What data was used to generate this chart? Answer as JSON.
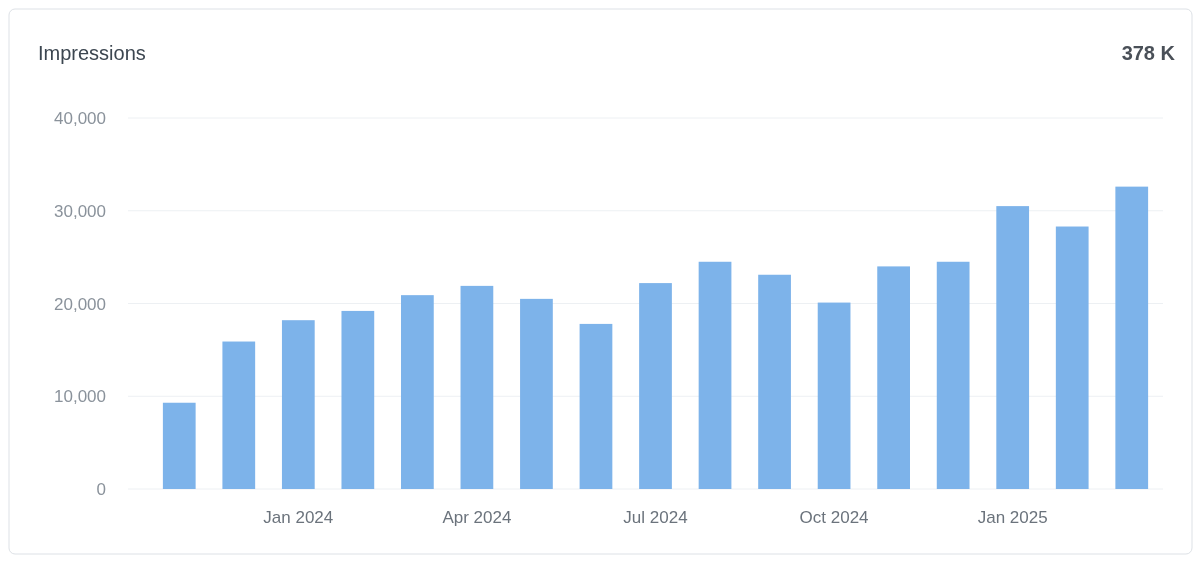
{
  "chart_data": {
    "type": "bar",
    "title": "Impressions",
    "annotations": [
      "378 K"
    ],
    "categories": [
      null,
      null,
      "Jan 2024",
      null,
      null,
      "Apr 2024",
      null,
      null,
      "Jul 2024",
      null,
      null,
      "Oct 2024",
      null,
      null,
      "Jan 2025",
      null,
      null
    ],
    "series": [
      {
        "color": "#7db3ea",
        "values": [
          9300,
          15900,
          18200,
          19200,
          20900,
          21900,
          20500,
          17800,
          22200,
          24500,
          23100,
          20100,
          24000,
          24500,
          30500,
          28300,
          32600
        ]
      }
    ],
    "ylim": [
      0,
      40000
    ],
    "yticks": [
      {
        "value": 0,
        "label": "0"
      },
      {
        "value": 10000,
        "label": "10,000"
      },
      {
        "value": 20000,
        "label": "20,000"
      },
      {
        "value": 30000,
        "label": "30,000"
      },
      {
        "value": 40000,
        "label": "40,000"
      }
    ],
    "grid": "y"
  }
}
